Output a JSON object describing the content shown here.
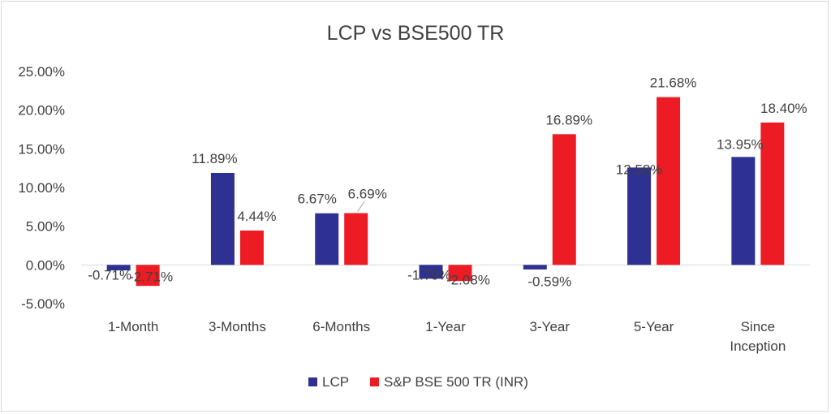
{
  "chart_data": {
    "type": "bar",
    "title": "LCP vs BSE500 TR",
    "categories": [
      "1-Month",
      "3-Months",
      "6-Months",
      "1-Year",
      "3-Year",
      "5-Year",
      "Since Inception"
    ],
    "series": [
      {
        "name": "LCP",
        "color": "#2e3192",
        "values": [
          -0.71,
          11.89,
          6.67,
          -1.79,
          -0.59,
          12.58,
          13.95
        ],
        "labels": [
          "-0.71%",
          "11.89%",
          "6.67%",
          "-1.79%",
          "-0.59%",
          "12.58%",
          "13.95%"
        ]
      },
      {
        "name": "S&P BSE 500 TR (INR)",
        "color": "#ed1c24",
        "values": [
          -2.71,
          4.44,
          6.69,
          -2.08,
          16.89,
          21.68,
          18.4
        ],
        "labels": [
          "-2.71%",
          "4.44%",
          "6.69%",
          "-2.08%",
          "16.89%",
          "21.68%",
          "18.40%"
        ]
      }
    ],
    "y_ticks": [
      "-5.00%",
      "0.00%",
      "5.00%",
      "10.00%",
      "15.00%",
      "20.00%",
      "25.00%"
    ],
    "ylim": [
      -5,
      25
    ],
    "grid": false,
    "legend_position": "bottom"
  }
}
